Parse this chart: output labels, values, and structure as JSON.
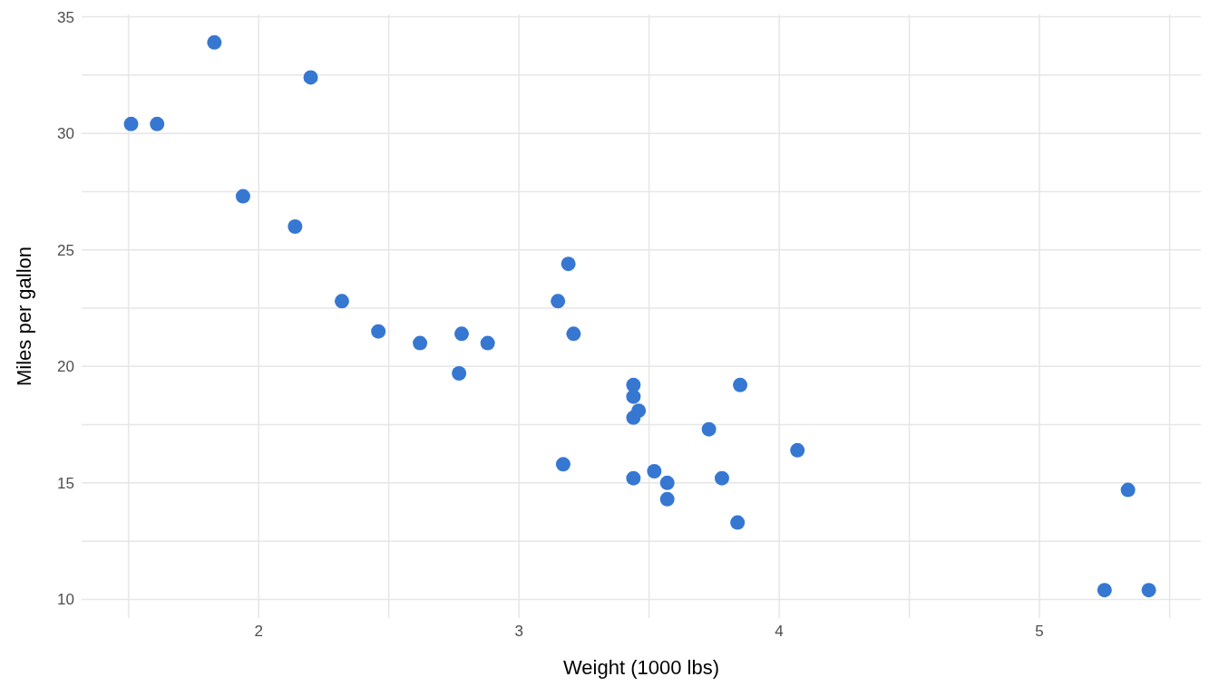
{
  "chart_data": {
    "type": "scatter",
    "xlabel": "Weight (1000 lbs)",
    "ylabel": "Miles per gallon",
    "x": [
      2.62,
      2.88,
      2.32,
      3.21,
      3.44,
      3.46,
      3.57,
      3.19,
      3.15,
      3.44,
      3.44,
      4.07,
      3.73,
      3.78,
      5.25,
      5.42,
      5.34,
      2.2,
      1.61,
      1.83,
      2.46,
      3.52,
      3.44,
      3.84,
      3.85,
      1.94,
      2.14,
      1.51,
      3.17,
      2.77,
      3.57,
      2.78
    ],
    "series": [
      {
        "color": "#3677d2",
        "values": [
          21.0,
          21.0,
          22.8,
          21.4,
          18.7,
          18.1,
          14.3,
          24.4,
          22.8,
          19.2,
          17.8,
          16.4,
          17.3,
          15.2,
          10.4,
          10.4,
          14.7,
          32.4,
          30.4,
          33.9,
          21.5,
          15.5,
          15.2,
          13.3,
          19.2,
          27.3,
          26.0,
          30.4,
          15.8,
          19.7,
          15.0,
          21.4
        ]
      }
    ],
    "xlim": [
      1.32,
      5.62
    ],
    "ylim": [
      9.2,
      35.1
    ],
    "xticks": [
      {
        "value": 1.5,
        "label": null
      },
      2,
      {
        "value": 2.5,
        "label": null
      },
      3,
      {
        "value": 3.5,
        "label": null
      },
      4,
      {
        "value": 4.5,
        "label": null
      },
      5,
      {
        "value": 5.5,
        "label": null
      }
    ],
    "yticks": [
      10,
      {
        "value": 12.5,
        "label": null
      },
      15,
      {
        "value": 17.5,
        "label": null
      },
      20,
      {
        "value": 22.5,
        "label": null
      },
      25,
      {
        "value": 27.5,
        "label": null
      },
      30,
      {
        "value": 32.5,
        "label": null
      },
      35
    ],
    "grid": true,
    "marker": "circle",
    "legend": false
  }
}
